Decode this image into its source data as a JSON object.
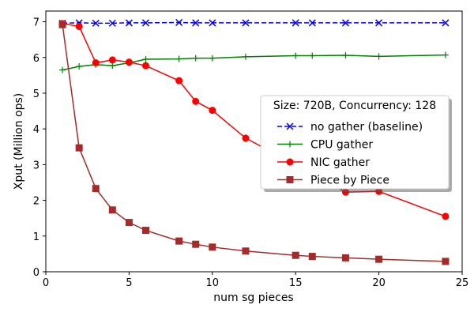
{
  "chart_data": {
    "type": "line",
    "title": "",
    "xlabel": "num sg pieces",
    "ylabel": "Xput (Million ops)",
    "xlim": [
      0,
      25
    ],
    "ylim": [
      0,
      7.3
    ],
    "xticks": [
      0,
      5,
      10,
      15,
      20,
      25
    ],
    "yticks": [
      0,
      1,
      2,
      3,
      4,
      5,
      6,
      7
    ],
    "grid": false,
    "legend": {
      "title": "Size: 720B, Concurrency: 128",
      "placement": "center-right"
    },
    "x": [
      1,
      2,
      3,
      4,
      5,
      6,
      8,
      9,
      10,
      12,
      15,
      16,
      18,
      20,
      24
    ],
    "series": [
      {
        "name": "no gather (baseline)",
        "color": "#0000ff",
        "marker": "x",
        "dash": true,
        "values": [
          6.96,
          6.97,
          6.96,
          6.96,
          6.97,
          6.97,
          6.98,
          6.97,
          6.97,
          6.97,
          6.97,
          6.97,
          6.97,
          6.97,
          6.97
        ]
      },
      {
        "name": "CPU gather",
        "color": "#008000",
        "marker": "plus",
        "dash": false,
        "values": [
          5.65,
          5.75,
          5.8,
          5.77,
          5.85,
          5.95,
          5.96,
          5.98,
          5.98,
          6.02,
          6.05,
          6.05,
          6.06,
          6.03,
          6.07
        ]
      },
      {
        "name": "NIC gather",
        "color": "#ff0000",
        "marker": "circle",
        "dash": false,
        "values": [
          6.95,
          6.87,
          5.85,
          5.93,
          5.87,
          5.77,
          5.35,
          4.77,
          4.52,
          3.74,
          3.0,
          2.75,
          2.23,
          2.25,
          1.55
        ]
      },
      {
        "name": "Piece by Piece",
        "color": "#a52a2a",
        "marker": "square",
        "dash": false,
        "values": [
          6.92,
          3.47,
          2.33,
          1.73,
          1.38,
          1.16,
          0.86,
          0.77,
          0.69,
          0.58,
          0.46,
          0.43,
          0.39,
          0.35,
          0.29
        ]
      }
    ]
  }
}
